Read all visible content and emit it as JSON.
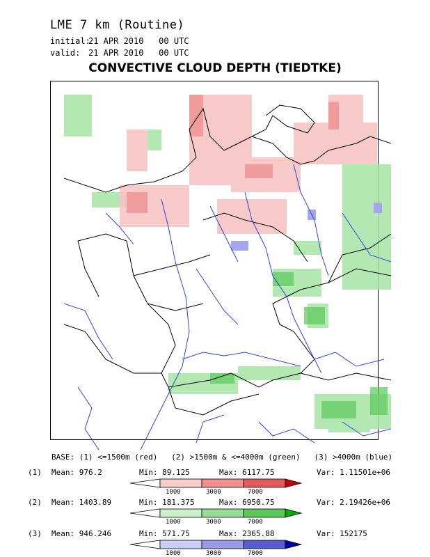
{
  "header": {
    "model": "LME 7 km (Routine)",
    "initial_label": "initial:",
    "initial_value": "21 APR 2010   00 UTC",
    "valid_label": "valid:",
    "valid_value": "21 APR 2010   00 UTC",
    "title": "CONVECTIVE CLOUD DEPTH (TIEDTKE)"
  },
  "legend": {
    "base_text": "BASE: (1) <=1500m (red)   (2) >1500m & <=4000m (green)   (3) >4000m (blue)",
    "ticks": [
      "1000",
      "3000",
      "7000"
    ],
    "rows": [
      {
        "index": "(1)",
        "mean": "Mean: 976.2",
        "min": "Min: 89.125",
        "max": "Max: 6117.75",
        "var": "Var: 1.11501e+06",
        "colors": [
          "#f8cccc",
          "#ee9090",
          "#e05a5a",
          "#c80000"
        ]
      },
      {
        "index": "(2)",
        "mean": "Mean: 1403.89",
        "min": "Min: 181.375",
        "max": "Max: 6950.75",
        "var": "Var: 2.19426e+06",
        "colors": [
          "#ccf0cc",
          "#96dc96",
          "#5ac85a",
          "#00aa00"
        ]
      },
      {
        "index": "(3)",
        "mean": "Mean: 946.246",
        "min": "Min: 571.75",
        "max": "Max: 2365.88",
        "var": "Var: 152175",
        "colors": [
          "#ccccf4",
          "#9a9ae6",
          "#5a5ad0",
          "#0000aa"
        ]
      }
    ]
  }
}
